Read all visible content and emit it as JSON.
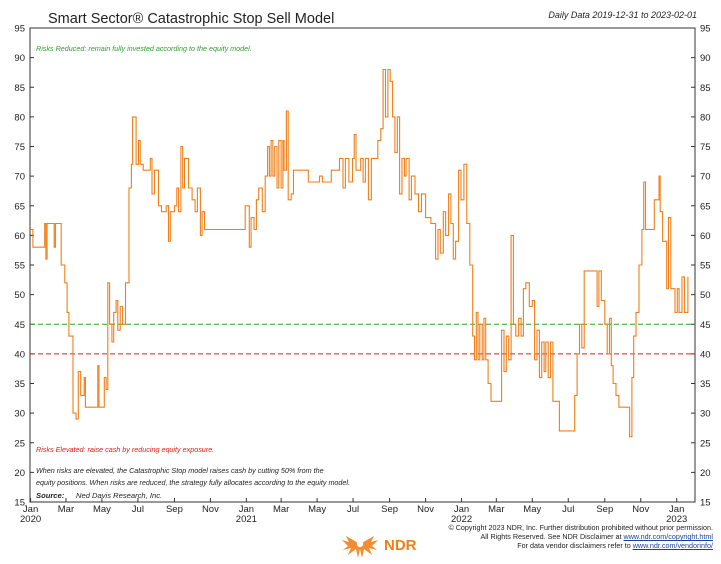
{
  "chart_data": {
    "type": "line",
    "title": "Smart Sector® Catastrophic Stop Sell Model",
    "subtitle": "Daily Data 2019-12-31 to 2023-02-01",
    "ylim": [
      15,
      95
    ],
    "yticks": [
      15,
      20,
      25,
      30,
      35,
      40,
      45,
      50,
      55,
      60,
      65,
      70,
      75,
      80,
      85,
      90,
      95
    ],
    "xlim": [
      "2019-12-31",
      "2023-02-01"
    ],
    "xticks": [
      {
        "date": "2020-01-01",
        "label": "Jan",
        "year": "2020"
      },
      {
        "date": "2020-03-01",
        "label": "Mar"
      },
      {
        "date": "2020-05-01",
        "label": "May"
      },
      {
        "date": "2020-07-01",
        "label": "Jul"
      },
      {
        "date": "2020-09-01",
        "label": "Sep"
      },
      {
        "date": "2020-11-01",
        "label": "Nov"
      },
      {
        "date": "2021-01-01",
        "label": "Jan",
        "year": "2021"
      },
      {
        "date": "2021-03-01",
        "label": "Mar"
      },
      {
        "date": "2021-05-01",
        "label": "May"
      },
      {
        "date": "2021-07-01",
        "label": "Jul"
      },
      {
        "date": "2021-09-01",
        "label": "Sep"
      },
      {
        "date": "2021-11-01",
        "label": "Nov"
      },
      {
        "date": "2022-01-01",
        "label": "Jan",
        "year": "2022"
      },
      {
        "date": "2022-03-01",
        "label": "Mar"
      },
      {
        "date": "2022-05-01",
        "label": "May"
      },
      {
        "date": "2022-07-01",
        "label": "Jul"
      },
      {
        "date": "2022-09-01",
        "label": "Sep"
      },
      {
        "date": "2022-11-01",
        "label": "Nov"
      },
      {
        "date": "2023-01-01",
        "label": "Jan",
        "year": "2023"
      }
    ],
    "grid": false,
    "reference_lines": [
      {
        "y": 45,
        "color": "#2ca02c",
        "style": "dashed"
      },
      {
        "y": 40,
        "color": "#e0201b",
        "style": "dashed"
      }
    ],
    "series": [
      {
        "color": "#f07f1a",
        "points": [
          [
            "2019-12-31",
            61
          ],
          [
            "2020-01-05",
            58
          ],
          [
            "2020-01-20",
            58
          ],
          [
            "2020-01-25",
            62
          ],
          [
            "2020-01-27",
            56
          ],
          [
            "2020-01-29",
            62
          ],
          [
            "2020-02-08",
            62
          ],
          [
            "2020-02-10",
            58
          ],
          [
            "2020-02-12",
            62
          ],
          [
            "2020-02-22",
            55
          ],
          [
            "2020-02-28",
            52
          ],
          [
            "2020-03-03",
            47
          ],
          [
            "2020-03-06",
            43
          ],
          [
            "2020-03-10",
            43
          ],
          [
            "2020-03-13",
            30
          ],
          [
            "2020-03-18",
            29
          ],
          [
            "2020-03-22",
            37
          ],
          [
            "2020-03-26",
            33
          ],
          [
            "2020-04-01",
            36
          ],
          [
            "2020-04-03",
            31
          ],
          [
            "2020-04-20",
            31
          ],
          [
            "2020-04-24",
            38
          ],
          [
            "2020-04-26",
            31
          ],
          [
            "2020-05-01",
            31
          ],
          [
            "2020-05-05",
            36
          ],
          [
            "2020-05-08",
            34
          ],
          [
            "2020-05-11",
            52
          ],
          [
            "2020-05-14",
            45
          ],
          [
            "2020-05-18",
            42
          ],
          [
            "2020-05-21",
            47
          ],
          [
            "2020-05-25",
            49
          ],
          [
            "2020-05-28",
            44
          ],
          [
            "2020-06-01",
            48
          ],
          [
            "2020-06-05",
            45
          ],
          [
            "2020-06-10",
            52
          ],
          [
            "2020-06-14",
            52
          ],
          [
            "2020-06-16",
            68
          ],
          [
            "2020-06-20",
            72
          ],
          [
            "2020-06-22",
            80
          ],
          [
            "2020-06-26",
            80
          ],
          [
            "2020-06-28",
            72
          ],
          [
            "2020-07-02",
            76
          ],
          [
            "2020-07-05",
            72
          ],
          [
            "2020-07-10",
            71
          ],
          [
            "2020-07-18",
            71
          ],
          [
            "2020-07-22",
            73
          ],
          [
            "2020-07-25",
            67
          ],
          [
            "2020-07-29",
            71
          ],
          [
            "2020-08-05",
            65
          ],
          [
            "2020-08-10",
            64
          ],
          [
            "2020-08-18",
            65
          ],
          [
            "2020-08-22",
            59
          ],
          [
            "2020-08-25",
            64
          ],
          [
            "2020-09-01",
            65
          ],
          [
            "2020-09-05",
            68
          ],
          [
            "2020-09-08",
            64
          ],
          [
            "2020-09-12",
            75
          ],
          [
            "2020-09-15",
            68
          ],
          [
            "2020-09-18",
            73
          ],
          [
            "2020-09-25",
            68
          ],
          [
            "2020-10-01",
            66
          ],
          [
            "2020-10-06",
            64
          ],
          [
            "2020-10-10",
            68
          ],
          [
            "2020-10-15",
            60
          ],
          [
            "2020-10-18",
            64
          ],
          [
            "2020-10-22",
            61
          ],
          [
            "2020-10-30",
            61
          ],
          [
            "2020-11-04",
            61
          ],
          [
            "2020-12-01",
            61
          ],
          [
            "2020-12-20",
            61
          ],
          [
            "2020-12-30",
            65
          ],
          [
            "2021-01-06",
            58
          ],
          [
            "2021-01-09",
            63
          ],
          [
            "2021-01-14",
            61
          ],
          [
            "2021-01-18",
            66
          ],
          [
            "2021-01-22",
            68
          ],
          [
            "2021-01-28",
            64
          ],
          [
            "2021-02-02",
            70
          ],
          [
            "2021-02-06",
            75
          ],
          [
            "2021-02-09",
            70
          ],
          [
            "2021-02-12",
            76
          ],
          [
            "2021-02-15",
            70
          ],
          [
            "2021-02-18",
            75
          ],
          [
            "2021-02-22",
            68
          ],
          [
            "2021-02-25",
            76
          ],
          [
            "2021-03-01",
            68
          ],
          [
            "2021-03-04",
            76
          ],
          [
            "2021-03-06",
            71
          ],
          [
            "2021-03-10",
            81
          ],
          [
            "2021-03-13",
            66
          ],
          [
            "2021-03-18",
            67
          ],
          [
            "2021-03-22",
            71
          ],
          [
            "2021-04-01",
            71
          ],
          [
            "2021-04-08",
            71
          ],
          [
            "2021-04-16",
            69
          ],
          [
            "2021-04-25",
            69
          ],
          [
            "2021-05-05",
            70
          ],
          [
            "2021-05-10",
            69
          ],
          [
            "2021-05-25",
            71
          ],
          [
            "2021-06-01",
            71
          ],
          [
            "2021-06-08",
            73
          ],
          [
            "2021-06-14",
            68
          ],
          [
            "2021-06-18",
            73
          ],
          [
            "2021-06-24",
            69
          ],
          [
            "2021-06-30",
            73
          ],
          [
            "2021-07-03",
            77
          ],
          [
            "2021-07-06",
            71
          ],
          [
            "2021-07-10",
            71
          ],
          [
            "2021-07-14",
            73
          ],
          [
            "2021-07-18",
            69
          ],
          [
            "2021-07-22",
            73
          ],
          [
            "2021-07-27",
            66
          ],
          [
            "2021-08-01",
            73
          ],
          [
            "2021-08-08",
            73
          ],
          [
            "2021-08-12",
            76
          ],
          [
            "2021-08-17",
            78
          ],
          [
            "2021-08-21",
            88
          ],
          [
            "2021-08-25",
            80
          ],
          [
            "2021-08-29",
            88
          ],
          [
            "2021-09-02",
            86
          ],
          [
            "2021-09-06",
            80
          ],
          [
            "2021-09-10",
            74
          ],
          [
            "2021-09-14",
            80
          ],
          [
            "2021-09-18",
            67
          ],
          [
            "2021-09-22",
            73
          ],
          [
            "2021-09-26",
            70
          ],
          [
            "2021-09-29",
            73
          ],
          [
            "2021-10-04",
            66
          ],
          [
            "2021-10-08",
            70
          ],
          [
            "2021-10-14",
            67
          ],
          [
            "2021-10-20",
            64
          ],
          [
            "2021-10-25",
            67
          ],
          [
            "2021-11-01",
            63
          ],
          [
            "2021-11-10",
            62
          ],
          [
            "2021-11-18",
            56
          ],
          [
            "2021-11-22",
            61
          ],
          [
            "2021-11-26",
            57
          ],
          [
            "2021-12-01",
            64
          ],
          [
            "2021-12-05",
            60
          ],
          [
            "2021-12-10",
            67
          ],
          [
            "2021-12-14",
            62
          ],
          [
            "2021-12-18",
            56
          ],
          [
            "2021-12-22",
            59
          ],
          [
            "2021-12-27",
            71
          ],
          [
            "2021-12-31",
            66
          ],
          [
            "2022-01-05",
            72
          ],
          [
            "2022-01-10",
            62
          ],
          [
            "2022-01-15",
            55
          ],
          [
            "2022-01-20",
            43
          ],
          [
            "2022-01-23",
            39
          ],
          [
            "2022-01-26",
            47
          ],
          [
            "2022-01-29",
            39
          ],
          [
            "2022-02-01",
            45
          ],
          [
            "2022-02-05",
            39
          ],
          [
            "2022-02-08",
            46
          ],
          [
            "2022-02-11",
            39
          ],
          [
            "2022-02-15",
            35
          ],
          [
            "2022-02-20",
            32
          ],
          [
            "2022-03-01",
            32
          ],
          [
            "2022-03-06",
            32
          ],
          [
            "2022-03-10",
            44
          ],
          [
            "2022-03-14",
            37
          ],
          [
            "2022-03-18",
            43
          ],
          [
            "2022-03-22",
            39
          ],
          [
            "2022-03-26",
            60
          ],
          [
            "2022-03-30",
            45
          ],
          [
            "2022-04-03",
            43
          ],
          [
            "2022-04-08",
            46
          ],
          [
            "2022-04-12",
            43
          ],
          [
            "2022-04-16",
            51
          ],
          [
            "2022-04-20",
            52
          ],
          [
            "2022-04-26",
            48
          ],
          [
            "2022-05-01",
            49
          ],
          [
            "2022-05-05",
            39
          ],
          [
            "2022-05-09",
            44
          ],
          [
            "2022-05-13",
            36
          ],
          [
            "2022-05-17",
            42
          ],
          [
            "2022-05-21",
            37
          ],
          [
            "2022-05-24",
            42
          ],
          [
            "2022-05-28",
            36
          ],
          [
            "2022-06-01",
            42
          ],
          [
            "2022-06-05",
            32
          ],
          [
            "2022-06-12",
            32
          ],
          [
            "2022-06-16",
            27
          ],
          [
            "2022-07-01",
            27
          ],
          [
            "2022-07-08",
            27
          ],
          [
            "2022-07-12",
            33
          ],
          [
            "2022-07-16",
            40
          ],
          [
            "2022-07-20",
            45
          ],
          [
            "2022-07-24",
            41
          ],
          [
            "2022-07-28",
            54
          ],
          [
            "2022-08-02",
            54
          ],
          [
            "2022-08-15",
            54
          ],
          [
            "2022-08-19",
            48
          ],
          [
            "2022-08-22",
            54
          ],
          [
            "2022-08-26",
            49
          ],
          [
            "2022-09-01",
            45
          ],
          [
            "2022-09-05",
            40
          ],
          [
            "2022-09-09",
            46
          ],
          [
            "2022-09-12",
            38
          ],
          [
            "2022-09-15",
            35
          ],
          [
            "2022-09-20",
            33
          ],
          [
            "2022-09-25",
            31
          ],
          [
            "2022-10-03",
            31
          ],
          [
            "2022-10-10",
            31
          ],
          [
            "2022-10-13",
            26
          ],
          [
            "2022-10-17",
            36
          ],
          [
            "2022-10-20",
            43
          ],
          [
            "2022-10-24",
            47
          ],
          [
            "2022-10-29",
            55
          ],
          [
            "2022-11-03",
            61
          ],
          [
            "2022-11-06",
            69
          ],
          [
            "2022-11-09",
            61
          ],
          [
            "2022-11-15",
            61
          ],
          [
            "2022-11-20",
            61
          ],
          [
            "2022-11-24",
            66
          ],
          [
            "2022-11-28",
            66
          ],
          [
            "2022-12-02",
            70
          ],
          [
            "2022-12-04",
            64
          ],
          [
            "2022-12-08",
            59
          ],
          [
            "2022-12-12",
            59
          ],
          [
            "2022-12-15",
            51
          ],
          [
            "2022-12-18",
            63
          ],
          [
            "2022-12-22",
            51
          ],
          [
            "2022-12-26",
            51
          ],
          [
            "2022-12-29",
            47
          ],
          [
            "2023-01-02",
            51
          ],
          [
            "2023-01-05",
            47
          ],
          [
            "2023-01-10",
            53
          ],
          [
            "2023-01-14",
            47
          ],
          [
            "2023-01-20",
            53
          ]
        ]
      }
    ],
    "annotations": {
      "top": "Risks Reduced: remain fully invested according to the equity model.",
      "elevated": "Risks Elevated: raise cash by reducing equity exposure.",
      "note_line1": "When risks are elevated, the Catastrophic Stop model raises cash by cutting 50% from the",
      "note_line2": "equity positions. When risks are reduced, the strategy fully allocates according to the equity model.",
      "source_label": "Source:",
      "source_text": "Ned Davis Research, Inc."
    },
    "colors": {
      "series": "#f07f1a",
      "green_line": "#2ca02c",
      "red_line": "#e0201b",
      "top_note": "#2ca02c",
      "elevated_note": "#e0201b",
      "frame": "#333333"
    }
  },
  "footer": {
    "copyright_1": "© Copyright 2023 NDR, Inc. Further distribution prohibited without prior permission.",
    "copyright_2_prefix": "All Rights Reserved. See NDR Disclaimer at ",
    "copyright_2_link": "www.ndr.com/copyright.html",
    "copyright_3_prefix": "For data vendor disclaimers refer to ",
    "copyright_3_link": "www.ndr.com/vendorinfo/",
    "logo_text": "NDR"
  }
}
